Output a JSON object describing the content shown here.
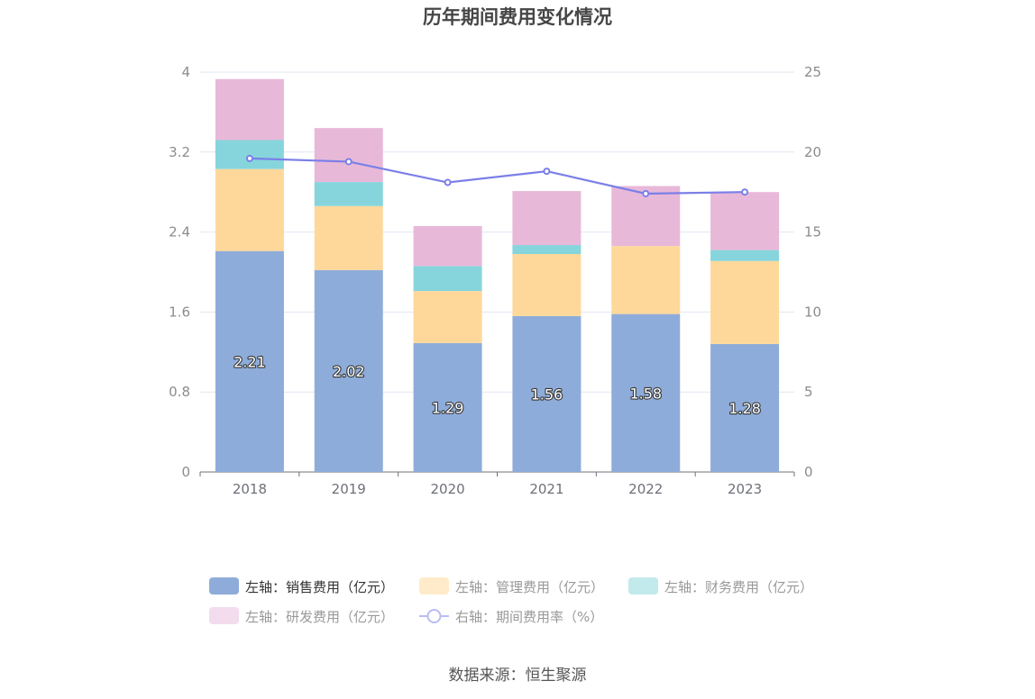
{
  "chart_data": {
    "type": "bar",
    "title": "历年期间费用变化情况",
    "categories": [
      "2018",
      "2019",
      "2020",
      "2021",
      "2022",
      "2023"
    ],
    "y_left": {
      "ticks": [
        "0",
        "0.8",
        "1.6",
        "2.4",
        "3.2",
        "4"
      ],
      "range": [
        0,
        4
      ]
    },
    "y_right": {
      "ticks": [
        "0",
        "5",
        "10",
        "15",
        "20",
        "25"
      ],
      "range": [
        0,
        25
      ]
    },
    "series": [
      {
        "name": "左轴：销售费用（亿元）",
        "kind": "bar",
        "axis": "left",
        "color": "#8eacd9",
        "values": [
          2.21,
          2.02,
          1.29,
          1.56,
          1.58,
          1.28
        ],
        "labels": [
          "2.21",
          "2.02",
          "1.29",
          "1.56",
          "1.58",
          "1.28"
        ]
      },
      {
        "name": "左轴：管理费用（亿元）",
        "kind": "bar",
        "axis": "left",
        "color": "#fed89a",
        "values": [
          0.82,
          0.64,
          0.52,
          0.62,
          0.68,
          0.83
        ]
      },
      {
        "name": "左轴：财务费用（亿元）",
        "kind": "bar",
        "axis": "left",
        "color": "#86d5dc",
        "values": [
          0.29,
          0.24,
          0.25,
          0.09,
          0.0,
          0.11
        ]
      },
      {
        "name": "左轴：研发费用（亿元）",
        "kind": "bar",
        "axis": "left",
        "color": "#e8b8d9",
        "values": [
          0.61,
          0.54,
          0.4,
          0.54,
          0.6,
          0.58
        ]
      },
      {
        "name": "右轴：期间费用率（%）",
        "kind": "line",
        "axis": "right",
        "color": "#7b7fe8",
        "values": [
          19.6,
          19.4,
          18.1,
          18.8,
          17.4,
          17.5
        ]
      }
    ],
    "legend_position": "bottom"
  },
  "footer": {
    "source": "数据来源：恒生聚源"
  }
}
